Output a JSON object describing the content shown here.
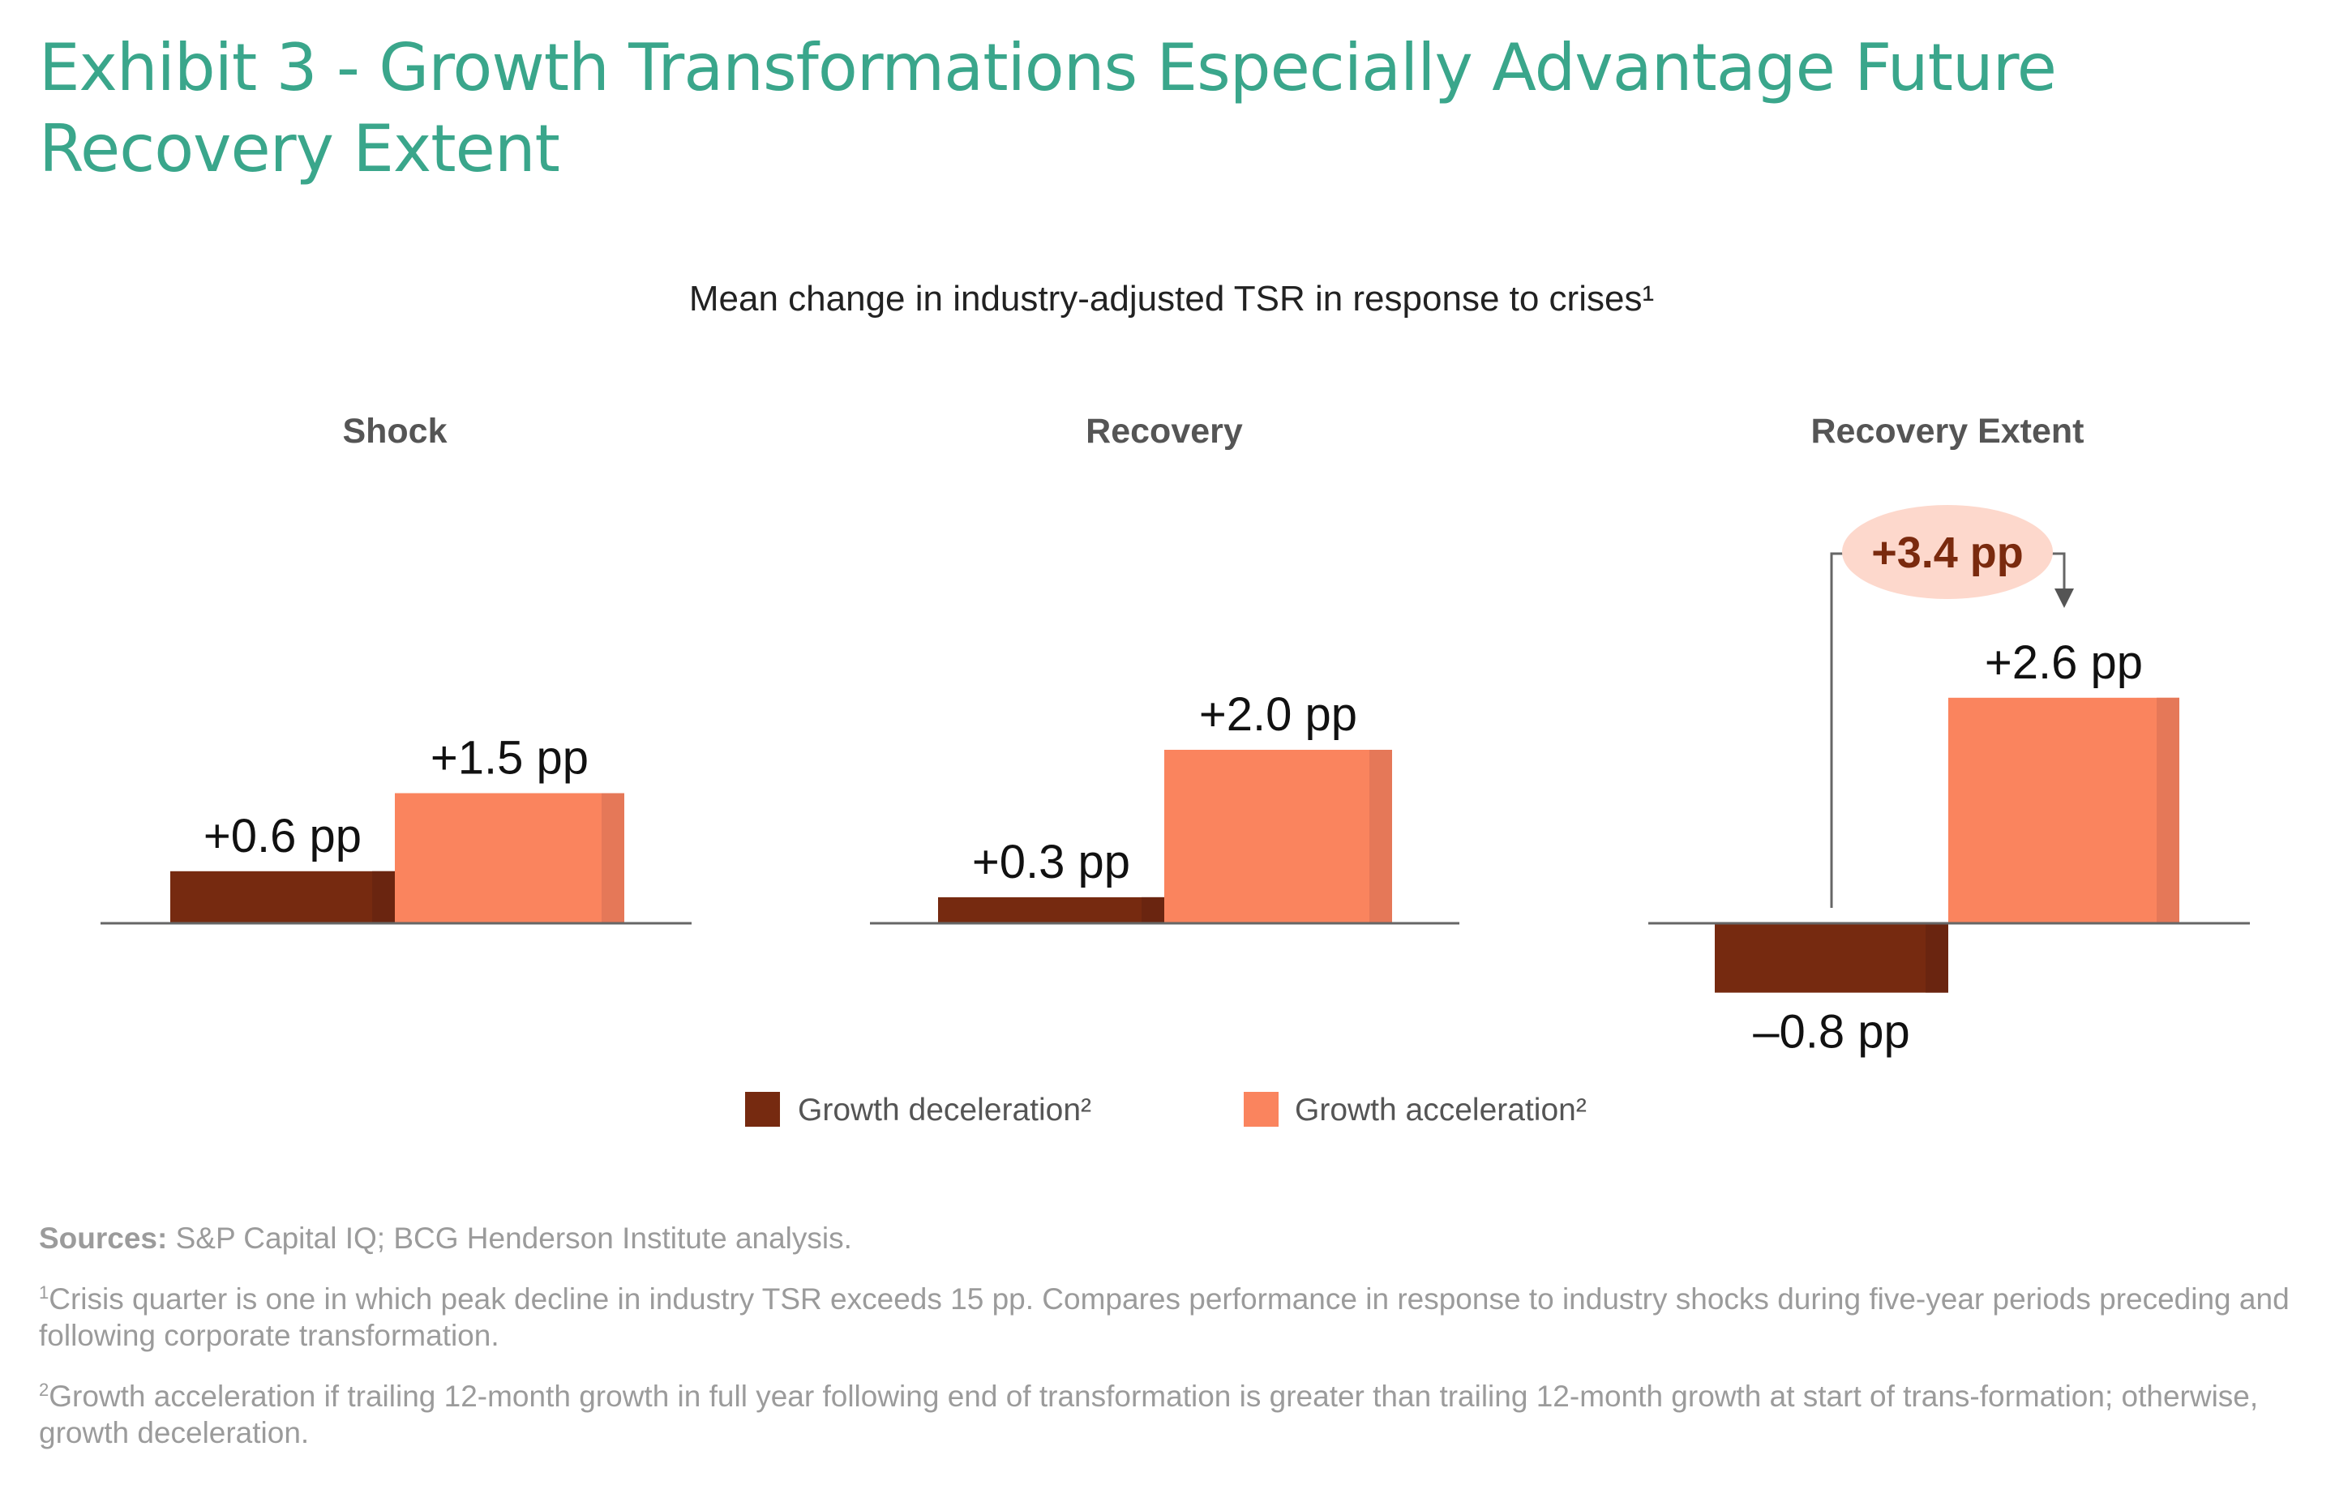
{
  "title": "Exhibit 3 - Growth Transformations Especially Advantage Future Recovery Extent",
  "chart_data": {
    "type": "bar",
    "title": "Mean change in industry-adjusted TSR in response to crises¹",
    "unit": "pp",
    "panels": [
      {
        "name": "Shock",
        "values": [
          0.6,
          1.5
        ],
        "labels": [
          "+0.6 pp",
          "+1.5 pp"
        ]
      },
      {
        "name": "Recovery",
        "values": [
          0.3,
          2.0
        ],
        "labels": [
          "+0.3 pp",
          "+2.0 pp"
        ]
      },
      {
        "name": "Recovery Extent",
        "values": [
          -0.8,
          2.6
        ],
        "labels": [
          "–0.8 pp",
          "+2.6 pp"
        ],
        "annotation": "+3.4 pp"
      }
    ],
    "series": [
      {
        "name": "Growth deceleration²",
        "color": "#762a10"
      },
      {
        "name": "Growth acceleration²",
        "color": "#fa845e"
      }
    ],
    "legend_position": "bottom-center",
    "grid": false
  },
  "sources": {
    "label": "Sources:",
    "text": " S&P Capital IQ; BCG Henderson Institute analysis."
  },
  "footnotes": [
    {
      "mark": "1",
      "text": "Crisis quarter is one in which peak decline in industry TSR exceeds 15 pp. Compares performance in response to industry shocks during five-year periods preceding and following corporate transformation."
    },
    {
      "mark": "2",
      "text": "Growth acceleration if trailing 12-month growth in full year following end of transformation is greater than trailing 12-month growth at start of trans-formation; otherwise, growth deceleration."
    }
  ]
}
